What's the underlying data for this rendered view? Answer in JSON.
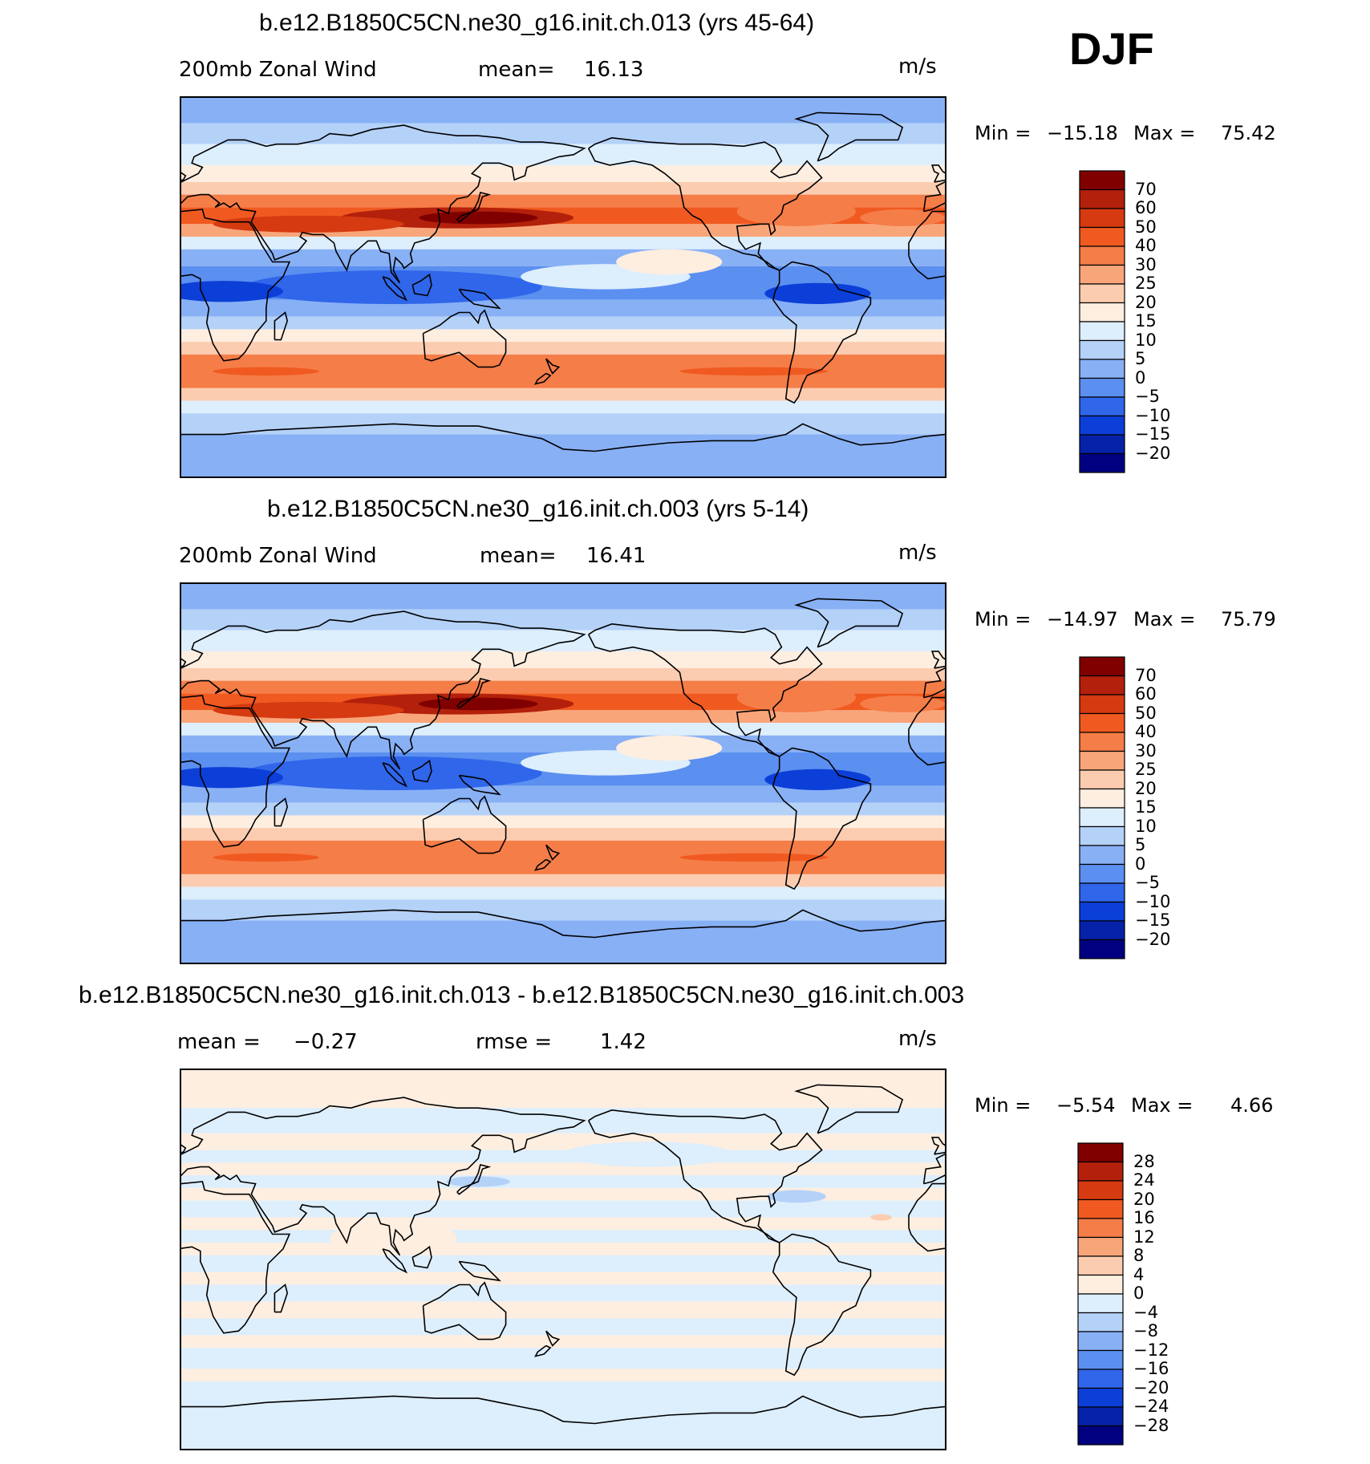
{
  "season": "DJF",
  "panels": [
    {
      "title": "b.e12.B1850C5CN.ne30_g16.init.ch.013 (yrs 45-64)",
      "left_label": "200mb Zonal Wind",
      "stat_label": "mean=",
      "stat_value": "16.13",
      "units": "m/s",
      "min_label": "Min =",
      "min_value": "−15.18",
      "max_label": "Max =",
      "max_value": "75.42",
      "colorbar": {
        "colors": [
          "#800000",
          "#b3200b",
          "#d63a10",
          "#f05a20",
          "#f57d48",
          "#f9a57a",
          "#fcccb0",
          "#fdeee0",
          "#ddeefc",
          "#b4d1f8",
          "#88b0f5",
          "#5b8ff0",
          "#2f66ea",
          "#0c3fd8",
          "#0622a8",
          "#000080"
        ],
        "labels": [
          "70",
          "60",
          "50",
          "40",
          "30",
          "25",
          "20",
          "15",
          "10",
          "5",
          "0",
          "−5",
          "−10",
          "−15",
          "−20"
        ]
      }
    },
    {
      "title": "b.e12.B1850C5CN.ne30_g16.init.ch.003 (yrs 5-14)",
      "left_label": "200mb Zonal Wind",
      "stat_label": "mean=",
      "stat_value": "16.41",
      "units": "m/s",
      "min_label": "Min =",
      "min_value": "−14.97",
      "max_label": "Max =",
      "max_value": "75.79",
      "colorbar": {
        "colors": [
          "#800000",
          "#b3200b",
          "#d63a10",
          "#f05a20",
          "#f57d48",
          "#f9a57a",
          "#fcccb0",
          "#fdeee0",
          "#ddeefc",
          "#b4d1f8",
          "#88b0f5",
          "#5b8ff0",
          "#2f66ea",
          "#0c3fd8",
          "#0622a8",
          "#000080"
        ],
        "labels": [
          "70",
          "60",
          "50",
          "40",
          "30",
          "25",
          "20",
          "15",
          "10",
          "5",
          "0",
          "−5",
          "−10",
          "−15",
          "−20"
        ]
      }
    },
    {
      "title": "b.e12.B1850C5CN.ne30_g16.init.ch.013 - b.e12.B1850C5CN.ne30_g16.init.ch.003",
      "left_label": "mean =",
      "left_value": "−0.27",
      "stat_label": "rmse =",
      "stat_value": "1.42",
      "units": "m/s",
      "min_label": "Min =",
      "min_value": "−5.54",
      "max_label": "Max =",
      "max_value": "4.66",
      "colorbar": {
        "colors": [
          "#800000",
          "#b3200b",
          "#d63a10",
          "#f05a20",
          "#f57d48",
          "#f9a57a",
          "#fcccb0",
          "#fdeee0",
          "#ddeefc",
          "#b4d1f8",
          "#88b0f5",
          "#5b8ff0",
          "#2f66ea",
          "#0c3fd8",
          "#0622a8",
          "#000080"
        ],
        "labels": [
          "28",
          "24",
          "20",
          "16",
          "12",
          "8",
          "4",
          "0",
          "−4",
          "−8",
          "−12",
          "−16",
          "−20",
          "−24",
          "−28"
        ]
      }
    }
  ]
}
